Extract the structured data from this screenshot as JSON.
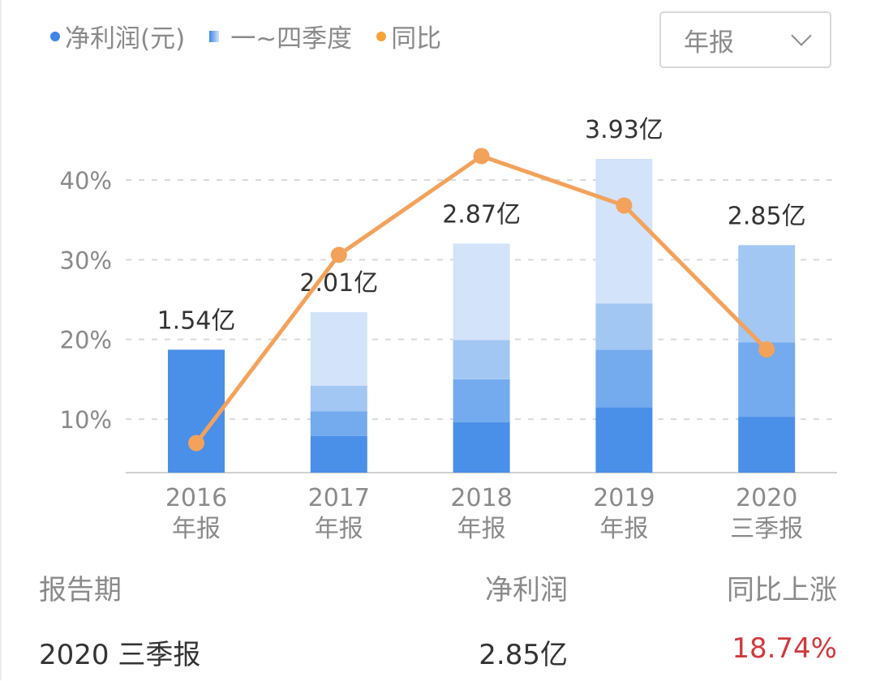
{
  "legend": {
    "net_profit": "净利润(元)",
    "quarters": "一~四季度",
    "yoy": "同比"
  },
  "period_select": {
    "value": "年报",
    "icon": "chevron-down-icon"
  },
  "colors": {
    "q1": "#4a8fe8",
    "q2": "#74aaee",
    "q3": "#a3c7f3",
    "q4": "#d3e3f9",
    "line": "#f3a25b",
    "grid": "#d9d9d9",
    "axis_text": "#8a8a8a",
    "label_text": "#333333",
    "up": "#d0393e"
  },
  "table": {
    "headers": [
      "报告期",
      "净利润",
      "同比上涨"
    ],
    "row": {
      "period": "2020 三季报",
      "net_profit": "2.85亿",
      "yoy": "18.74%"
    }
  },
  "chart_data": {
    "type": "bar",
    "title": "",
    "legend_position": "top-left",
    "grid": true,
    "categories": [
      "2016\n年报",
      "2017\n年报",
      "2018\n年报",
      "2019\n年报",
      "2020\n三季报"
    ],
    "category_years": [
      "2016",
      "2017",
      "2018",
      "2019",
      "2020"
    ],
    "category_types": [
      "年报",
      "年报",
      "年报",
      "年报",
      "三季报"
    ],
    "bar_labels": [
      "1.54亿",
      "2.01亿",
      "2.87亿",
      "3.93亿",
      "2.85亿"
    ],
    "net_profit_yi": [
      1.54,
      2.01,
      2.87,
      3.93,
      2.85
    ],
    "series": [
      {
        "name": "净利润(元)",
        "type": "bar",
        "values": [
          1.54,
          2.01,
          2.87,
          3.93,
          2.85
        ]
      },
      {
        "name": "一季度",
        "type": "stacked-bar",
        "values": [
          null,
          0.46,
          0.63,
          0.82,
          0.7
        ]
      },
      {
        "name": "二季度",
        "type": "stacked-bar",
        "values": [
          null,
          0.31,
          0.54,
          0.72,
          0.93
        ]
      },
      {
        "name": "三季度",
        "type": "stacked-bar",
        "values": [
          null,
          0.32,
          0.49,
          0.58,
          1.22
        ]
      },
      {
        "name": "四季度",
        "type": "stacked-bar",
        "values": [
          null,
          0.92,
          1.21,
          1.81,
          null
        ]
      },
      {
        "name": "同比",
        "type": "line",
        "axis": "left",
        "unit": "%",
        "values": [
          7.0,
          30.6,
          43.0,
          36.8,
          18.74
        ]
      }
    ],
    "yaxis": {
      "ticks": [
        "10%",
        "20%",
        "30%",
        "40%"
      ],
      "tick_values": [
        10,
        20,
        30,
        40
      ],
      "range": [
        3.4,
        47
      ]
    },
    "xlabel": "",
    "ylabel": ""
  }
}
